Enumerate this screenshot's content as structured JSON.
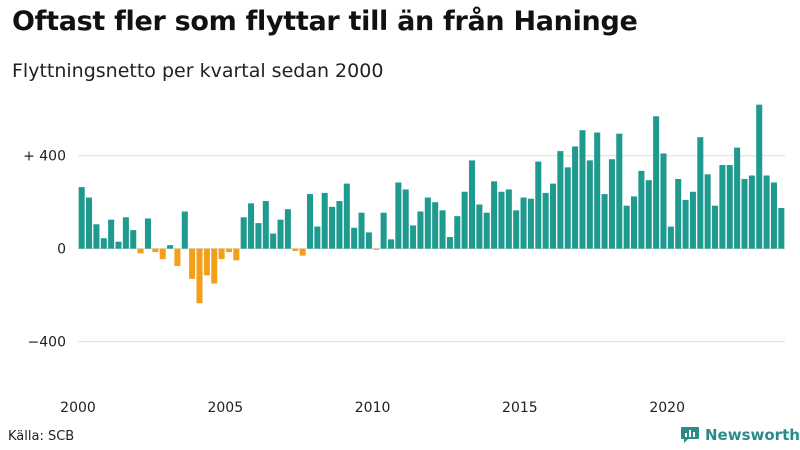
{
  "header": {
    "title": "Oftast fler som flyttar till än från Haninge",
    "subtitle": "Flyttningsnetto per kvartal sedan 2000"
  },
  "footer": {
    "source": "Källa: SCB",
    "brand": "Newsworthy"
  },
  "colors": {
    "positive": "#1f9a8e",
    "negative": "#f2a01c",
    "grid": "#dddddd",
    "brand": "#2a8c8a"
  },
  "chart_data": {
    "type": "bar",
    "title": "Oftast fler som flyttar till än från Haninge",
    "subtitle": "Flyttningsnetto per kvartal sedan 2000",
    "xlabel": "",
    "ylabel": "",
    "start_year": 2000,
    "quarters_per_year": 4,
    "ylim": [
      -630,
      640
    ],
    "y_ticks": [
      {
        "value": 400,
        "label": "+ 400"
      },
      {
        "value": 0,
        "label": "0"
      },
      {
        "value": -400,
        "label": "−400"
      }
    ],
    "x_ticks": [
      {
        "value": 2000,
        "label": "2000"
      },
      {
        "value": 2005,
        "label": "2005"
      },
      {
        "value": 2010,
        "label": "2010"
      },
      {
        "value": 2015,
        "label": "2015"
      },
      {
        "value": 2020,
        "label": "2020"
      }
    ],
    "values": [
      265,
      220,
      105,
      45,
      125,
      30,
      135,
      80,
      -20,
      130,
      -15,
      -45,
      15,
      -75,
      160,
      -130,
      -235,
      -115,
      -150,
      -45,
      -15,
      -50,
      135,
      195,
      110,
      205,
      65,
      125,
      170,
      -10,
      -30,
      235,
      95,
      240,
      180,
      205,
      280,
      90,
      155,
      70,
      -5,
      155,
      40,
      285,
      255,
      100,
      160,
      220,
      200,
      165,
      50,
      140,
      245,
      380,
      190,
      155,
      290,
      245,
      255,
      165,
      220,
      215,
      375,
      240,
      280,
      420,
      350,
      440,
      510,
      380,
      500,
      235,
      385,
      495,
      185,
      225,
      335,
      295,
      570,
      410,
      95,
      300,
      210,
      245,
      480,
      320,
      185,
      360,
      360,
      435,
      300,
      315,
      620,
      315,
      285,
      175
    ]
  }
}
